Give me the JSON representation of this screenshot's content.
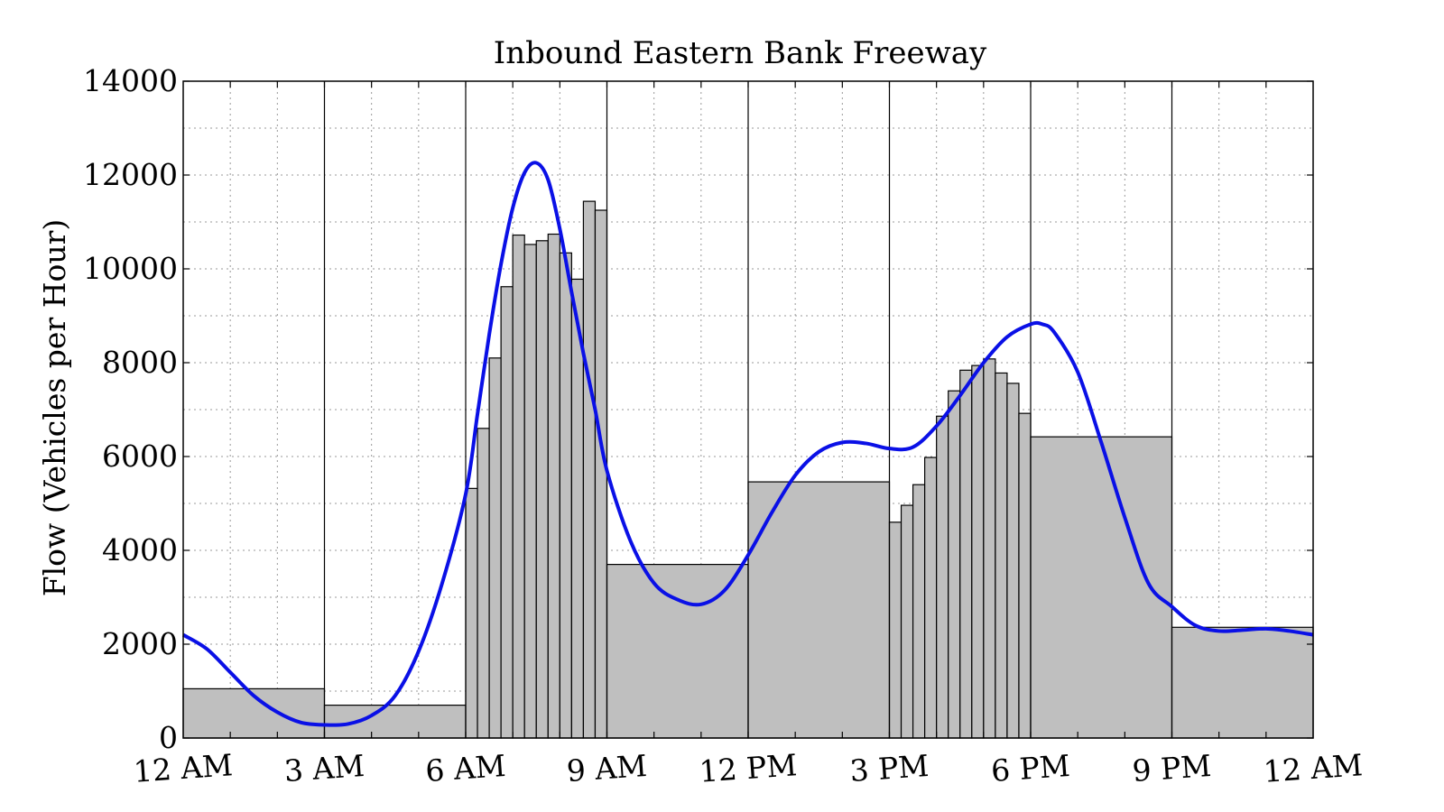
{
  "chart_data": {
    "type": "bar",
    "title": "Inbound Eastern Bank Freeway",
    "xlabel": "",
    "ylabel": "Flow (Vehicles per Hour)",
    "xlim": [
      0,
      24
    ],
    "ylim": [
      0,
      14000
    ],
    "grid": true,
    "x_ticks": [
      {
        "value": 0,
        "label": "12 AM"
      },
      {
        "value": 3,
        "label": "3 AM"
      },
      {
        "value": 6,
        "label": "6 AM"
      },
      {
        "value": 9,
        "label": "9 AM"
      },
      {
        "value": 12,
        "label": "12 PM"
      },
      {
        "value": 15,
        "label": "3 PM"
      },
      {
        "value": 18,
        "label": "6 PM"
      },
      {
        "value": 21,
        "label": "9 PM"
      },
      {
        "value": 24,
        "label": "12 AM"
      }
    ],
    "y_ticks": [
      0,
      2000,
      4000,
      6000,
      8000,
      10000,
      12000,
      14000
    ],
    "period_boundaries": [
      3,
      6,
      9,
      12,
      15,
      18,
      21
    ],
    "bars": [
      {
        "start": 0,
        "end": 3,
        "value": 1050
      },
      {
        "start": 3,
        "end": 6,
        "value": 700
      },
      {
        "start": 6.0,
        "end": 6.25,
        "value": 5320
      },
      {
        "start": 6.25,
        "end": 6.5,
        "value": 6600
      },
      {
        "start": 6.5,
        "end": 6.75,
        "value": 8100
      },
      {
        "start": 6.75,
        "end": 7.0,
        "value": 9620
      },
      {
        "start": 7.0,
        "end": 7.25,
        "value": 10720
      },
      {
        "start": 7.25,
        "end": 7.5,
        "value": 10520
      },
      {
        "start": 7.5,
        "end": 7.75,
        "value": 10600
      },
      {
        "start": 7.75,
        "end": 8.0,
        "value": 10740
      },
      {
        "start": 8.0,
        "end": 8.25,
        "value": 10340
      },
      {
        "start": 8.25,
        "end": 8.5,
        "value": 9780
      },
      {
        "start": 8.5,
        "end": 8.75,
        "value": 11440
      },
      {
        "start": 8.75,
        "end": 9.0,
        "value": 11250
      },
      {
        "start": 9,
        "end": 12,
        "value": 3700
      },
      {
        "start": 12,
        "end": 15,
        "value": 5460
      },
      {
        "start": 15.0,
        "end": 15.25,
        "value": 4600
      },
      {
        "start": 15.25,
        "end": 15.5,
        "value": 4960
      },
      {
        "start": 15.5,
        "end": 15.75,
        "value": 5400
      },
      {
        "start": 15.75,
        "end": 16.0,
        "value": 5980
      },
      {
        "start": 16.0,
        "end": 16.25,
        "value": 6860
      },
      {
        "start": 16.25,
        "end": 16.5,
        "value": 7400
      },
      {
        "start": 16.5,
        "end": 16.75,
        "value": 7840
      },
      {
        "start": 16.75,
        "end": 17.0,
        "value": 7940
      },
      {
        "start": 17.0,
        "end": 17.25,
        "value": 8080
      },
      {
        "start": 17.25,
        "end": 17.5,
        "value": 7780
      },
      {
        "start": 17.5,
        "end": 17.75,
        "value": 7560
      },
      {
        "start": 17.75,
        "end": 18.0,
        "value": 6920
      },
      {
        "start": 18,
        "end": 21,
        "value": 6420
      },
      {
        "start": 21,
        "end": 24,
        "value": 2360
      }
    ],
    "series": [
      {
        "type": "line",
        "color": "#0a10e6",
        "x": [
          0,
          0.5,
          1,
          1.5,
          2,
          2.5,
          3,
          3.5,
          4,
          4.5,
          5,
          5.5,
          6,
          6.25,
          6.5,
          6.75,
          7,
          7.25,
          7.5,
          7.75,
          8,
          8.25,
          8.5,
          8.75,
          9,
          9.5,
          10,
          10.5,
          11,
          11.5,
          12,
          12.5,
          13,
          13.5,
          14,
          14.5,
          15,
          15.5,
          16,
          16.5,
          17,
          17.5,
          18,
          18.25,
          18.5,
          19,
          19.5,
          20,
          20.5,
          21,
          21.5,
          22,
          22.5,
          23,
          23.5,
          24
        ],
        "y": [
          2200,
          1900,
          1400,
          900,
          550,
          330,
          280,
          300,
          480,
          900,
          1850,
          3300,
          5200,
          6900,
          8600,
          10100,
          11300,
          12050,
          12260,
          11900,
          10850,
          9500,
          8200,
          7000,
          5700,
          4200,
          3300,
          2950,
          2850,
          3150,
          3900,
          4800,
          5600,
          6100,
          6300,
          6280,
          6170,
          6200,
          6650,
          7300,
          8000,
          8550,
          8820,
          8820,
          8650,
          7800,
          6300,
          4700,
          3300,
          2800,
          2400,
          2280,
          2300,
          2330,
          2280,
          2200
        ]
      }
    ]
  }
}
